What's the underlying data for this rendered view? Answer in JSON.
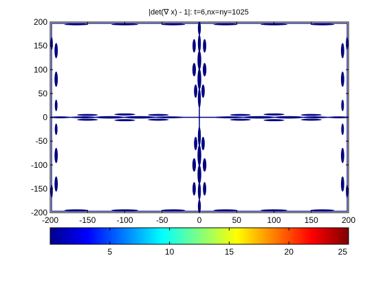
{
  "chart_data": {
    "type": "heatmap",
    "title": "|det(∇ x) - 1|: t=6,nx=ny=1025",
    "xlim": [
      -200,
      200
    ],
    "ylim": [
      -200,
      200
    ],
    "xticks": [
      -200,
      -150,
      -100,
      -50,
      0,
      50,
      100,
      150,
      200
    ],
    "yticks": [
      -200,
      -150,
      -100,
      -50,
      0,
      50,
      100,
      150,
      200
    ],
    "xticklabels": [
      "-200",
      "-150",
      "-100",
      "-50",
      "0",
      "50",
      "100",
      "150",
      "200"
    ],
    "yticklabels": [
      "-200",
      "-150",
      "-100",
      "-50",
      "0",
      "50",
      "100",
      "150",
      "200"
    ],
    "colorbar": {
      "colormap": "jet",
      "range": [
        0,
        25
      ],
      "ticks": [
        5,
        10,
        15,
        20,
        25
      ],
      "ticklabels": [
        "5",
        "10",
        "15",
        "20",
        "25"
      ]
    },
    "grid": false,
    "contour_color": "#000080",
    "blobs": [
      {
        "cx": 0,
        "cy": 187,
        "rx": 2,
        "ry": 14
      },
      {
        "cx": 0,
        "cy": 155,
        "rx": 2,
        "ry": 18
      },
      {
        "cx": 0,
        "cy": 120,
        "rx": 2.5,
        "ry": 20
      },
      {
        "cx": 0,
        "cy": 80,
        "rx": 2.5,
        "ry": 22
      },
      {
        "cx": 0,
        "cy": 40,
        "rx": 2,
        "ry": 20
      },
      {
        "cx": 0,
        "cy": -40,
        "rx": 2,
        "ry": 20
      },
      {
        "cx": 0,
        "cy": -80,
        "rx": 2.5,
        "ry": 22
      },
      {
        "cx": 0,
        "cy": -120,
        "rx": 2.5,
        "ry": 20
      },
      {
        "cx": 0,
        "cy": -155,
        "rx": 2,
        "ry": 18
      },
      {
        "cx": 0,
        "cy": -187,
        "rx": 2,
        "ry": 14
      },
      {
        "cx": -7,
        "cy": 150,
        "rx": 2.2,
        "ry": 14
      },
      {
        "cx": 7,
        "cy": 150,
        "rx": 2.2,
        "ry": 14
      },
      {
        "cx": -7,
        "cy": 100,
        "rx": 2.4,
        "ry": 14
      },
      {
        "cx": 7,
        "cy": 100,
        "rx": 2.4,
        "ry": 14
      },
      {
        "cx": -5,
        "cy": 55,
        "rx": 2.2,
        "ry": 14
      },
      {
        "cx": 5,
        "cy": 55,
        "rx": 2.2,
        "ry": 14
      },
      {
        "cx": -5,
        "cy": -55,
        "rx": 2.2,
        "ry": 14
      },
      {
        "cx": 5,
        "cy": -55,
        "rx": 2.2,
        "ry": 14
      },
      {
        "cx": -7,
        "cy": -100,
        "rx": 2.4,
        "ry": 14
      },
      {
        "cx": 7,
        "cy": -100,
        "rx": 2.4,
        "ry": 14
      },
      {
        "cx": -7,
        "cy": -150,
        "rx": 2.2,
        "ry": 14
      },
      {
        "cx": 7,
        "cy": -150,
        "rx": 2.2,
        "ry": 14
      },
      {
        "cx": 187,
        "cy": 0,
        "rx": 14,
        "ry": 2
      },
      {
        "cx": 155,
        "cy": 0,
        "rx": 18,
        "ry": 2
      },
      {
        "cx": 120,
        "cy": 0,
        "rx": 20,
        "ry": 2.5
      },
      {
        "cx": 80,
        "cy": 0,
        "rx": 22,
        "ry": 2.5
      },
      {
        "cx": 40,
        "cy": 0,
        "rx": 20,
        "ry": 2
      },
      {
        "cx": -40,
        "cy": 0,
        "rx": 20,
        "ry": 2
      },
      {
        "cx": -80,
        "cy": 0,
        "rx": 22,
        "ry": 2.5
      },
      {
        "cx": -120,
        "cy": 0,
        "rx": 20,
        "ry": 2.5
      },
      {
        "cx": -155,
        "cy": 0,
        "rx": 18,
        "ry": 2
      },
      {
        "cx": -187,
        "cy": 0,
        "rx": 14,
        "ry": 2
      },
      {
        "cx": 150,
        "cy": -5,
        "rx": 14,
        "ry": 2
      },
      {
        "cx": 150,
        "cy": 5,
        "rx": 14,
        "ry": 2
      },
      {
        "cx": 100,
        "cy": -6,
        "rx": 14,
        "ry": 2.2
      },
      {
        "cx": 100,
        "cy": 6,
        "rx": 14,
        "ry": 2.2
      },
      {
        "cx": 55,
        "cy": -5,
        "rx": 14,
        "ry": 2
      },
      {
        "cx": 55,
        "cy": 5,
        "rx": 14,
        "ry": 2
      },
      {
        "cx": -55,
        "cy": -5,
        "rx": 14,
        "ry": 2
      },
      {
        "cx": -55,
        "cy": 5,
        "rx": 14,
        "ry": 2
      },
      {
        "cx": -100,
        "cy": -6,
        "rx": 14,
        "ry": 2.2
      },
      {
        "cx": -100,
        "cy": 6,
        "rx": 14,
        "ry": 2.2
      },
      {
        "cx": -150,
        "cy": -5,
        "rx": 14,
        "ry": 2
      },
      {
        "cx": -150,
        "cy": 5,
        "rx": 14,
        "ry": 2
      },
      {
        "cx": -192,
        "cy": 140,
        "rx": 2.2,
        "ry": 16
      },
      {
        "cx": -192,
        "cy": 80,
        "rx": 2.2,
        "ry": 16
      },
      {
        "cx": -192,
        "cy": 25,
        "rx": 1.8,
        "ry": 12
      },
      {
        "cx": -192,
        "cy": -25,
        "rx": 1.8,
        "ry": 12
      },
      {
        "cx": -192,
        "cy": -80,
        "rx": 2.2,
        "ry": 16
      },
      {
        "cx": -192,
        "cy": -140,
        "rx": 2.2,
        "ry": 16
      },
      {
        "cx": -198,
        "cy": 155,
        "rx": 1.5,
        "ry": 14
      },
      {
        "cx": -198,
        "cy": -155,
        "rx": 1.5,
        "ry": 14
      },
      {
        "cx": 192,
        "cy": 140,
        "rx": 2.2,
        "ry": 16
      },
      {
        "cx": 192,
        "cy": 80,
        "rx": 2.2,
        "ry": 16
      },
      {
        "cx": 192,
        "cy": 25,
        "rx": 1.8,
        "ry": 12
      },
      {
        "cx": 192,
        "cy": -25,
        "rx": 1.8,
        "ry": 12
      },
      {
        "cx": 192,
        "cy": -80,
        "rx": 2.2,
        "ry": 16
      },
      {
        "cx": 192,
        "cy": -140,
        "rx": 2.2,
        "ry": 16
      },
      {
        "cx": 198,
        "cy": 155,
        "rx": 1.5,
        "ry": 14
      },
      {
        "cx": 198,
        "cy": -155,
        "rx": 1.5,
        "ry": 14
      },
      {
        "cx": -165,
        "cy": 195,
        "rx": 16,
        "ry": 1.8
      },
      {
        "cx": -100,
        "cy": 195,
        "rx": 18,
        "ry": 1.8
      },
      {
        "cx": -35,
        "cy": 195,
        "rx": 16,
        "ry": 1.8
      },
      {
        "cx": 35,
        "cy": 195,
        "rx": 16,
        "ry": 1.8
      },
      {
        "cx": 100,
        "cy": 195,
        "rx": 18,
        "ry": 1.8
      },
      {
        "cx": 165,
        "cy": 195,
        "rx": 16,
        "ry": 1.8
      },
      {
        "cx": -165,
        "cy": -195,
        "rx": 16,
        "ry": 1.8
      },
      {
        "cx": -100,
        "cy": -195,
        "rx": 18,
        "ry": 1.8
      },
      {
        "cx": -35,
        "cy": -195,
        "rx": 16,
        "ry": 1.8
      },
      {
        "cx": 35,
        "cy": -195,
        "rx": 16,
        "ry": 1.8
      },
      {
        "cx": 100,
        "cy": -195,
        "rx": 18,
        "ry": 1.8
      },
      {
        "cx": 165,
        "cy": -195,
        "rx": 16,
        "ry": 1.8
      }
    ]
  }
}
